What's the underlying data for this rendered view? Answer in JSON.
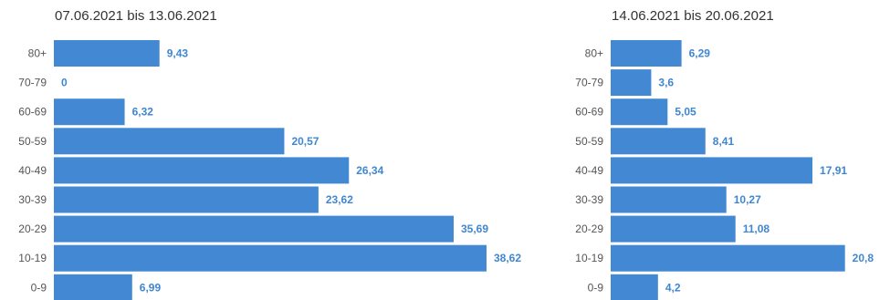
{
  "chart_data": [
    {
      "type": "bar",
      "orientation": "horizontal",
      "title": "07.06.2021 bis 13.06.2021",
      "categories": [
        "80+",
        "70-79",
        "60-69",
        "50-59",
        "40-49",
        "30-39",
        "20-29",
        "10-19",
        "0-9"
      ],
      "values": [
        9.43,
        0,
        6.32,
        20.57,
        26.34,
        23.62,
        35.69,
        38.62,
        6.99
      ],
      "value_labels": [
        "9,43",
        "0",
        "6,32",
        "20,57",
        "26,34",
        "23,62",
        "35,69",
        "38,62",
        "6,99"
      ],
      "xlim": [
        0,
        44
      ],
      "grid": false,
      "color": "#4388d3",
      "label_color": "#3f87d0"
    },
    {
      "type": "bar",
      "orientation": "horizontal",
      "title": "14.06.2021 bis 20.06.2021",
      "categories": [
        "80+",
        "70-79",
        "60-69",
        "50-59",
        "40-49",
        "30-39",
        "20-29",
        "10-19",
        "0-9"
      ],
      "values": [
        6.29,
        3.6,
        5.05,
        8.41,
        17.91,
        10.27,
        11.08,
        20.8,
        4.2
      ],
      "value_labels": [
        "6,29",
        "3,6",
        "5,05",
        "8,41",
        "17,91",
        "10,27",
        "11,08",
        "20,8",
        "4,2"
      ],
      "xlim": [
        0,
        23.5
      ],
      "grid": false,
      "color": "#4388d3",
      "label_color": "#3f87d0"
    }
  ]
}
